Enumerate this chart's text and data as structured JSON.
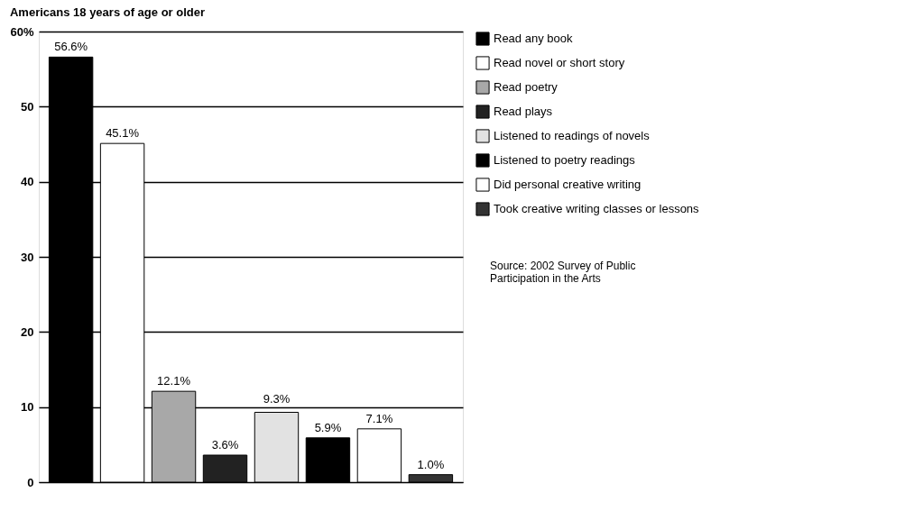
{
  "chart_data": {
    "type": "bar",
    "title": "Americans 18 years of age or older",
    "categories": [
      null,
      null,
      null,
      null,
      null,
      null,
      null,
      null
    ],
    "series": [
      {
        "name": "Read any book",
        "color": "#000000",
        "values": [
          56.6,
          null,
          null,
          null,
          null,
          null,
          null,
          null
        ],
        "value_labels": [
          "56.6%",
          null,
          null,
          null,
          null,
          null,
          null,
          null
        ]
      },
      {
        "name": "Read novel or short story",
        "color": "#ffffff",
        "values": [
          null,
          45.1,
          null,
          null,
          null,
          null,
          null,
          null
        ],
        "value_labels": [
          null,
          "45.1%",
          null,
          null,
          null,
          null,
          null,
          null
        ]
      },
      {
        "name": "Read poetry",
        "color": "#a8a8a8",
        "values": [
          null,
          null,
          12.1,
          null,
          null,
          null,
          null,
          null
        ],
        "value_labels": [
          null,
          null,
          "12.1%",
          null,
          null,
          null,
          null,
          null
        ]
      },
      {
        "name": "Read plays",
        "color": "#222222",
        "values": [
          null,
          null,
          null,
          3.6,
          null,
          null,
          null,
          null
        ],
        "value_labels": [
          null,
          null,
          null,
          "3.6%",
          null,
          null,
          null,
          null
        ]
      },
      {
        "name": "Listened to readings of novels",
        "color": "#e2e2e2",
        "values": [
          null,
          null,
          null,
          null,
          9.3,
          null,
          null,
          null
        ],
        "value_labels": [
          null,
          null,
          null,
          null,
          "9.3%",
          null,
          null,
          null
        ]
      },
      {
        "name": "Listened to poetry readings",
        "color": "#000000",
        "values": [
          null,
          null,
          null,
          null,
          null,
          5.9,
          null,
          null
        ],
        "value_labels": [
          null,
          null,
          null,
          null,
          null,
          "5.9%",
          null,
          null
        ]
      },
      {
        "name": "Did personal creative writing",
        "color": "#ffffff",
        "values": [
          null,
          null,
          null,
          null,
          null,
          null,
          7.1,
          null
        ],
        "value_labels": [
          null,
          null,
          null,
          null,
          null,
          null,
          "7.1%",
          null
        ]
      },
      {
        "name": "Took creative writing classes or lessons",
        "color": "#333333",
        "values": [
          null,
          null,
          null,
          null,
          null,
          null,
          null,
          1.0
        ],
        "value_labels": [
          null,
          null,
          null,
          null,
          null,
          null,
          null,
          "1.0%"
        ]
      }
    ],
    "ylim": [
      0,
      60
    ],
    "yticks": [
      0,
      10,
      20,
      30,
      40,
      50,
      {
        "value": 60,
        "label": "60%"
      }
    ],
    "grid": "y",
    "legend": "right",
    "tick_labels": "y",
    "annotations": [
      "Source: 2002 Survey of Public Participation in the Arts"
    ]
  }
}
